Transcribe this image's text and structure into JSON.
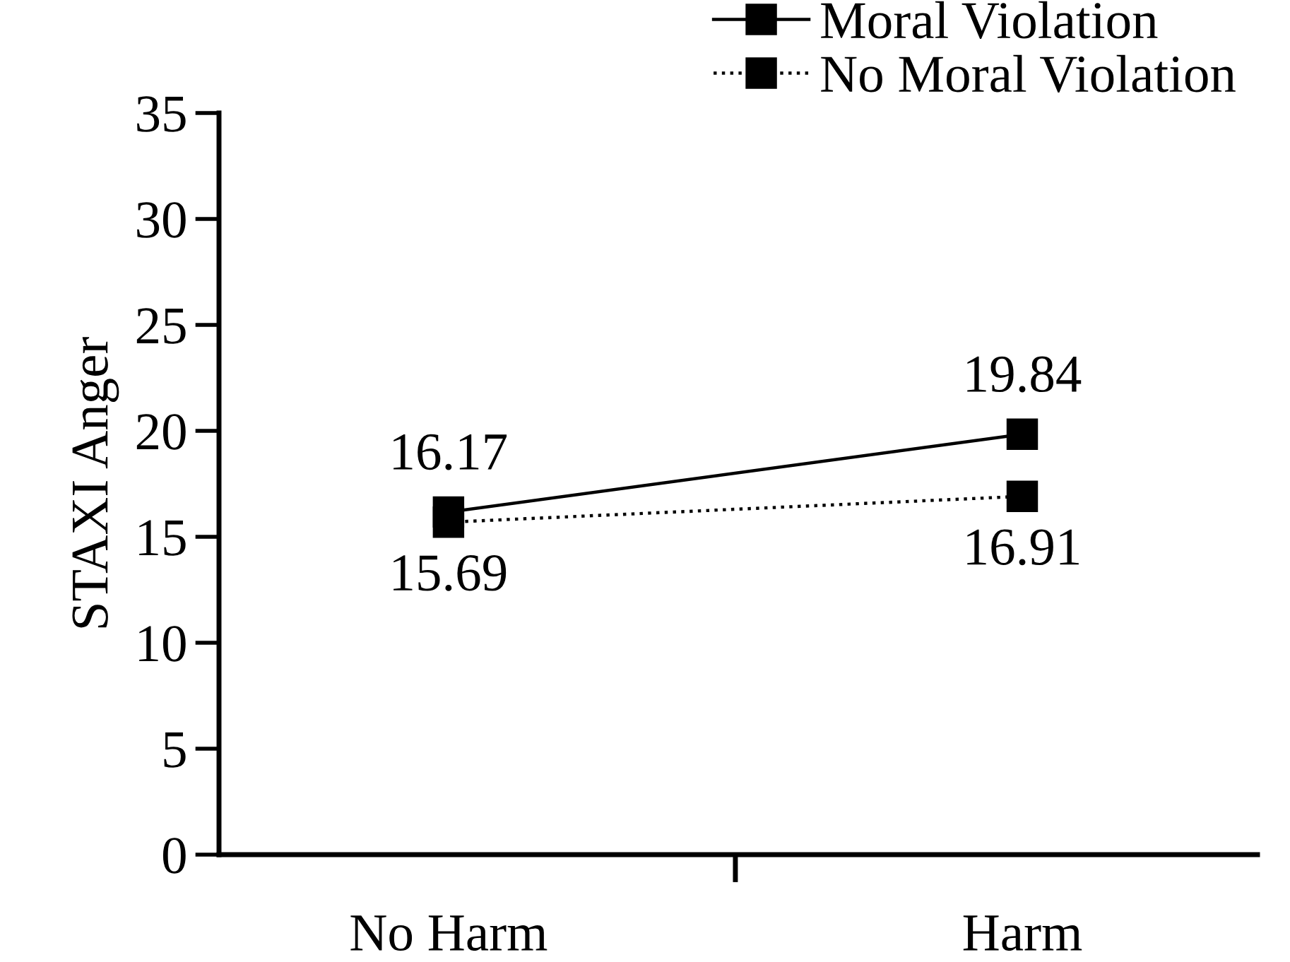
{
  "chart_data": {
    "type": "line",
    "ylabel": "STAXI Anger",
    "categories": [
      "No Harm",
      "Harm"
    ],
    "series": [
      {
        "name": "Moral Violation",
        "color": "#000000",
        "values": [
          16.17,
          19.84
        ],
        "line_style": "solid"
      },
      {
        "name": "No Moral Violation",
        "color": "#000000",
        "values": [
          15.69,
          16.91
        ],
        "line_style": "dotted"
      }
    ],
    "ylim": [
      0,
      35
    ],
    "yticks": [
      0,
      5,
      10,
      15,
      20,
      25,
      30,
      35
    ],
    "marker": "square",
    "data_labels": true,
    "legend": "top right",
    "grid": false
  }
}
